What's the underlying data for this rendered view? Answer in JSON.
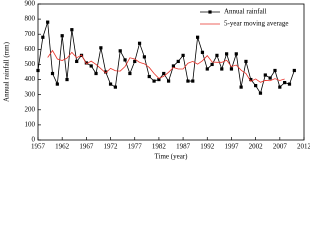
{
  "chart_data": {
    "type": "line",
    "x_label": "Time (year)",
    "y_label": "Annual rainfall (mm)",
    "x": [
      1957,
      1958,
      1959,
      1960,
      1961,
      1962,
      1963,
      1964,
      1965,
      1966,
      1967,
      1968,
      1969,
      1970,
      1971,
      1972,
      1973,
      1974,
      1975,
      1976,
      1977,
      1978,
      1979,
      1980,
      1981,
      1982,
      1983,
      1984,
      1985,
      1986,
      1987,
      1988,
      1989,
      1990,
      1991,
      1992,
      1993,
      1994,
      1995,
      1996,
      1997,
      1998,
      1999,
      2000,
      2001,
      2002,
      2003,
      2004,
      2005,
      2006,
      2007,
      2008,
      2009,
      2010
    ],
    "series": [
      {
        "name": "Annual rainfall",
        "color": "#000000",
        "marker": "square",
        "values": [
          460,
          680,
          780,
          440,
          370,
          690,
          400,
          730,
          520,
          560,
          510,
          490,
          440,
          610,
          450,
          370,
          350,
          590,
          530,
          440,
          520,
          640,
          550,
          420,
          390,
          400,
          440,
          390,
          490,
          520,
          560,
          390,
          390,
          680,
          580,
          470,
          500,
          560,
          470,
          570,
          470,
          570,
          350,
          520,
          400,
          360,
          310,
          430,
          410,
          460,
          350,
          380,
          370,
          460
        ]
      },
      {
        "name": "5-year moving average",
        "color": "#e8332a",
        "values": [
          null,
          null,
          546,
          592,
          536,
          526,
          542,
          580,
          544,
          562,
          504,
          522,
          500,
          472,
          444,
          474,
          458,
          456,
          486,
          544,
          536,
          514,
          504,
          480,
          440,
          408,
          422,
          448,
          480,
          470,
          470,
          508,
          520,
          502,
          524,
          558,
          516,
          514,
          514,
          528,
          486,
          496,
          462,
          440,
          388,
          404,
          382,
          394,
          392,
          406,
          394,
          404,
          null,
          null
        ]
      }
    ],
    "xlim": [
      1957,
      2012
    ],
    "xticks": [
      1957,
      1962,
      1967,
      1972,
      1977,
      1982,
      1987,
      1992,
      1997,
      2002,
      2007,
      2012
    ],
    "ylim": [
      0,
      900
    ],
    "yticks": [
      0,
      100,
      200,
      300,
      400,
      500,
      600,
      700,
      800,
      900
    ],
    "legend": "upper right",
    "grid": false
  }
}
